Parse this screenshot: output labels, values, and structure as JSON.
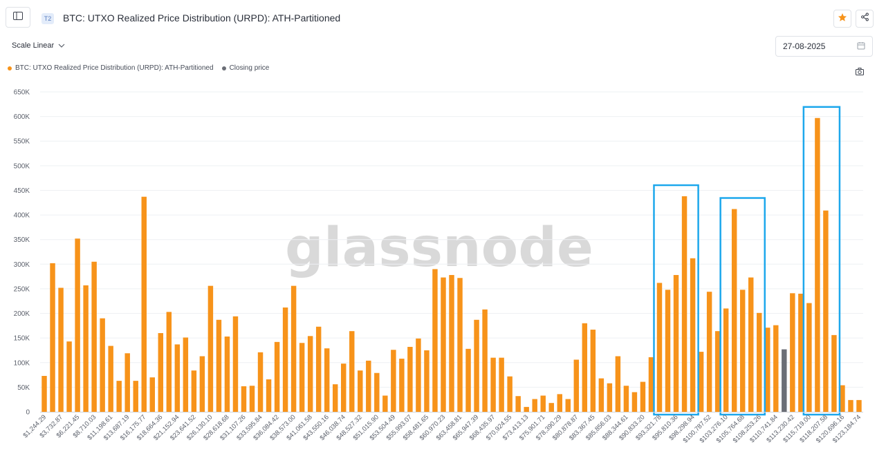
{
  "header": {
    "tier_badge": "T2",
    "title": "BTC: UTXO Realized Price Distribution (URPD): ATH-Partitioned",
    "sidebar_icon": "sidebar-toggle-icon",
    "star_icon": "star-icon",
    "share_icon": "share-icon"
  },
  "controls": {
    "scale_label": "Scale Linear",
    "date_value": "27-08-2025",
    "calendar_icon": "calendar-icon",
    "camera_icon": "camera-icon"
  },
  "legend": [
    {
      "label": "BTC: UTXO Realized Price Distribution (URPD): ATH-Partitioned",
      "color": "#f7931a"
    },
    {
      "label": "Closing price",
      "color": "#6b6e76"
    }
  ],
  "watermark": "glassnode",
  "chart_data": {
    "type": "bar",
    "ylim": [
      0,
      650000
    ],
    "yticks": [
      0,
      50000,
      100000,
      150000,
      200000,
      250000,
      300000,
      350000,
      400000,
      450000,
      500000,
      550000,
      600000,
      650000
    ],
    "ytick_labels": [
      "0",
      "50K",
      "100K",
      "150K",
      "200K",
      "250K",
      "300K",
      "350K",
      "400K",
      "450K",
      "500K",
      "550K",
      "600K",
      "650K"
    ],
    "xtick_labels": [
      "$1,244.29",
      "$3,732.87",
      "$6,221.45",
      "$8,710.03",
      "$11,198.61",
      "$13,687.19",
      "$16,175.77",
      "$18,664.36",
      "$21,152.94",
      "$23,641.52",
      "$26,130.10",
      "$28,618.68",
      "$31,107.26",
      "$33,595.84",
      "$36,084.42",
      "$38,573.00",
      "$41,061.58",
      "$43,550.16",
      "$46,038.74",
      "$48,527.32",
      "$51,015.90",
      "$53,504.49",
      "$55,993.07",
      "$58,481.65",
      "$60,970.23",
      "$63,458.81",
      "$65,947.39",
      "$68,435.97",
      "$70,924.55",
      "$73,413.13",
      "$75,901.71",
      "$78,390.29",
      "$80,878.87",
      "$83,367.45",
      "$85,856.03",
      "$88,344.61",
      "$90,833.20",
      "$93,321.78",
      "$95,810.36",
      "$98,298.94",
      "$100,787.52",
      "$103,276.10",
      "$105,764.68",
      "$108,253.26",
      "$110,741.84",
      "$113,230.42",
      "$115,719.00",
      "$118,207.58",
      "$120,696.16",
      "$123,184.74"
    ],
    "closing_price_index": 89,
    "series": [
      {
        "name": "BTC: UTXO Realized Price Distribution (URPD): ATH-Partitioned",
        "color": "#f7931a",
        "values": [
          73000,
          302000,
          252000,
          143000,
          352000,
          257000,
          305000,
          190000,
          134000,
          63000,
          119000,
          63000,
          437000,
          70000,
          160000,
          203000,
          137000,
          151000,
          84000,
          113000,
          256000,
          187000,
          153000,
          194000,
          52000,
          53000,
          121000,
          66000,
          142000,
          212000,
          256000,
          140000,
          154000,
          173000,
          129000,
          56000,
          98000,
          164000,
          84000,
          104000,
          79000,
          33000,
          126000,
          108000,
          132000,
          149000,
          125000,
          290000,
          273000,
          278000,
          272000,
          128000,
          187000,
          208000,
          110000,
          110000,
          72000,
          32000,
          10000,
          26000,
          33000,
          18000,
          36000,
          26000,
          106000,
          180000,
          167000,
          68000,
          58000,
          113000,
          53000,
          40000,
          61000,
          111000,
          262000,
          248000,
          278000,
          438000,
          312000,
          122000,
          244000,
          164000,
          210000,
          412000,
          248000,
          273000,
          201000,
          171000,
          176000,
          127000,
          241000,
          240000,
          221000,
          597000,
          409000,
          156000,
          54000,
          24000,
          24000
        ]
      }
    ],
    "closing_price_color": "#6b6e76",
    "highlights": [
      {
        "from_index": 74,
        "to_index": 78
      },
      {
        "from_index": 82,
        "to_index": 86
      },
      {
        "from_index": 92,
        "to_index": 95
      }
    ],
    "highlight_color": "#1ca7ec",
    "grid": true
  }
}
